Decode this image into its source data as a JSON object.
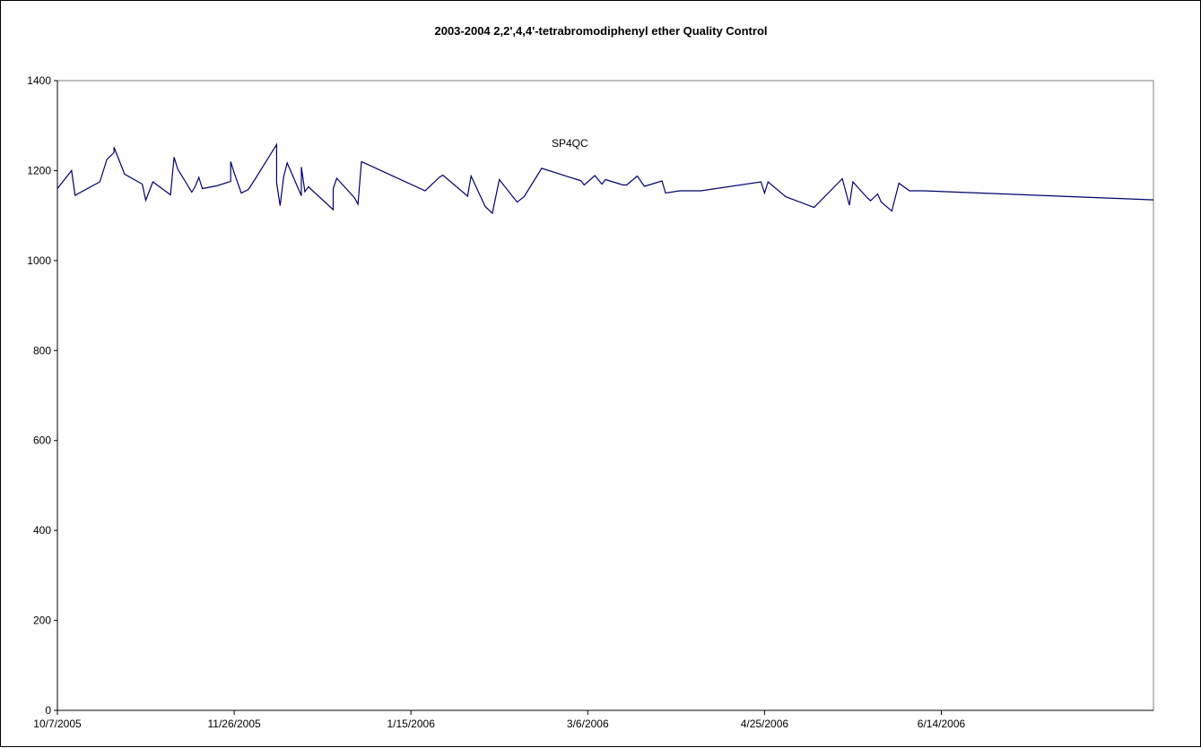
{
  "chart_data": {
    "type": "line",
    "title": "2003-2004 2,2',4,4'-tetrabromodiphenyl ether Quality Control",
    "xlabel": "",
    "ylabel": "",
    "ylim": [
      0,
      1400
    ],
    "xlim": [
      "2005-10-07",
      "2006-08-13"
    ],
    "y_ticks": [
      "0",
      "200",
      "400",
      "600",
      "800",
      "1000",
      "1200",
      "1400"
    ],
    "x_ticks": [
      {
        "date": "2005-10-07",
        "label": "10/7/2005"
      },
      {
        "date": "2005-11-26",
        "label": "11/26/2005"
      },
      {
        "date": "2006-01-15",
        "label": "1/15/2006"
      },
      {
        "date": "2006-03-06",
        "label": "3/6/2006"
      },
      {
        "date": "2006-04-25",
        "label": "4/25/2006"
      },
      {
        "date": "2006-06-14",
        "label": "6/14/2006"
      }
    ],
    "annotation": "SP4QC",
    "grid": false,
    "legend": "none",
    "line_color": "#00006e",
    "series": [
      {
        "x": [
          "2005-10-07",
          "2005-10-11",
          "2005-10-12",
          "2005-10-19",
          "2005-10-21",
          "2005-10-23",
          "2005-10-23",
          "2005-10-26",
          "2005-10-31",
          "2005-11-01",
          "2005-11-03",
          "2005-11-08",
          "2005-11-09",
          "2005-11-10",
          "2005-11-14",
          "2005-11-15",
          "2005-11-16",
          "2005-11-17",
          "2005-11-21",
          "2005-11-25",
          "2005-11-25",
          "2005-11-26",
          "2005-11-28",
          "2005-11-30",
          "2005-12-02",
          "2005-12-08",
          "2005-12-08",
          "2005-12-09",
          "2005-12-10",
          "2005-12-11",
          "2005-12-15",
          "2005-12-15",
          "2005-12-16",
          "2005-12-17",
          "2005-12-24",
          "2005-12-24",
          "2005-12-25",
          "2005-12-30",
          "2005-12-31",
          "2006-01-01",
          "2006-01-19",
          "2006-01-23",
          "2006-01-24",
          "2006-01-30",
          "2006-01-31",
          "2006-02-01",
          "2006-02-05",
          "2006-02-07",
          "2006-02-09",
          "2006-02-14",
          "2006-02-16",
          "2006-02-21",
          "2006-03-03",
          "2006-03-04",
          "2006-03-05",
          "2006-03-08",
          "2006-03-10",
          "2006-03-11",
          "2006-03-16",
          "2006-03-17",
          "2006-03-20",
          "2006-03-22",
          "2006-03-27",
          "2006-03-28",
          "2006-04-01",
          "2006-04-07",
          "2006-04-24",
          "2006-04-25",
          "2006-04-26",
          "2006-05-01",
          "2006-05-09",
          "2006-05-17",
          "2006-05-19",
          "2006-05-20",
          "2006-05-24",
          "2006-05-25",
          "2006-05-27",
          "2006-05-28",
          "2006-05-31",
          "2006-06-02",
          "2006-06-05",
          "2006-06-09",
          "2006-08-13"
        ],
        "values": [
          1160,
          1200,
          1145,
          1175,
          1225,
          1240,
          1252,
          1192,
          1170,
          1134,
          1175,
          1146,
          1230,
          1204,
          1152,
          1165,
          1185,
          1160,
          1166,
          1176,
          1220,
          1195,
          1150,
          1158,
          1182,
          1258,
          1173,
          1122,
          1187,
          1217,
          1144,
          1208,
          1153,
          1164,
          1113,
          1160,
          1183,
          1140,
          1125,
          1220,
          1155,
          1185,
          1190,
          1150,
          1143,
          1188,
          1120,
          1105,
          1180,
          1130,
          1142,
          1205,
          1180,
          1178,
          1168,
          1189,
          1170,
          1180,
          1168,
          1168,
          1188,
          1165,
          1177,
          1150,
          1155,
          1155,
          1175,
          1150,
          1175,
          1142,
          1118,
          1182,
          1123,
          1175,
          1140,
          1133,
          1148,
          1130,
          1110,
          1172,
          1155,
          1155,
          1135
        ]
      }
    ]
  }
}
